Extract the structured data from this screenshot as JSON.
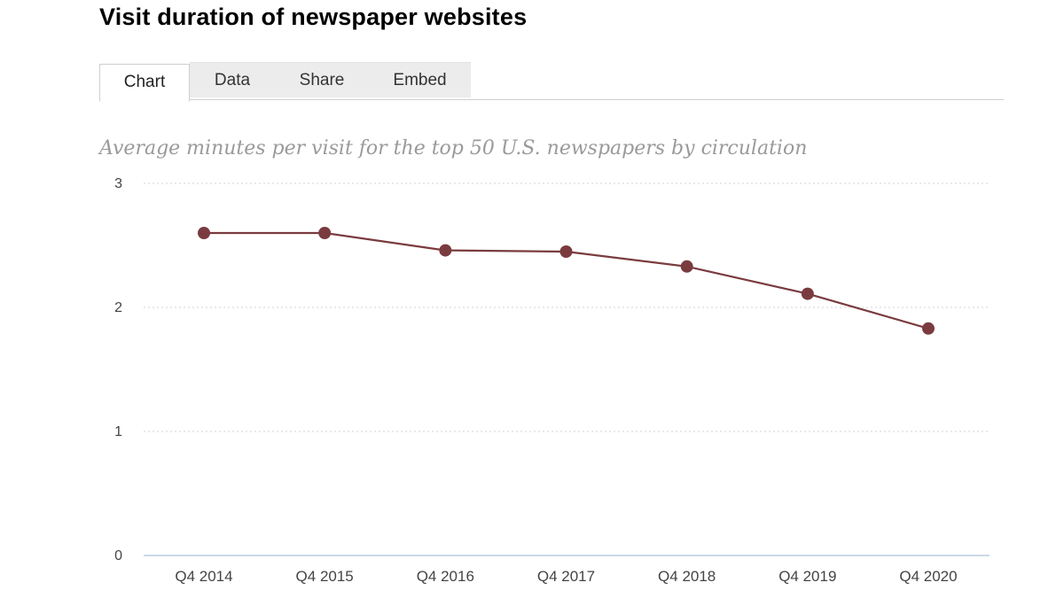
{
  "header": {
    "title": "Visit duration of newspaper websites"
  },
  "tabs": [
    {
      "label": "Chart",
      "active": true
    },
    {
      "label": "Data",
      "active": false
    },
    {
      "label": "Share",
      "active": false
    },
    {
      "label": "Embed",
      "active": false
    }
  ],
  "chart_data": {
    "type": "line",
    "title": "Visit duration of newspaper websites",
    "subtitle": "Average minutes per visit for the top 50 U.S. newspapers by circulation",
    "xlabel": "",
    "ylabel": "",
    "categories": [
      "Q4 2014",
      "Q4 2015",
      "Q4 2016",
      "Q4 2017",
      "Q4 2018",
      "Q4 2019",
      "Q4 2020"
    ],
    "series": [
      {
        "values": [
          2.6,
          2.6,
          2.46,
          2.45,
          2.33,
          2.11,
          1.83
        ],
        "color": "#7a3b3f"
      }
    ],
    "ylim": [
      0,
      3
    ],
    "yticks": [
      "0",
      "1",
      "2",
      "3"
    ],
    "grid": true,
    "gridline_color": "#d0d0d0",
    "axis_color": "#b8cde0",
    "legend": "none"
  }
}
